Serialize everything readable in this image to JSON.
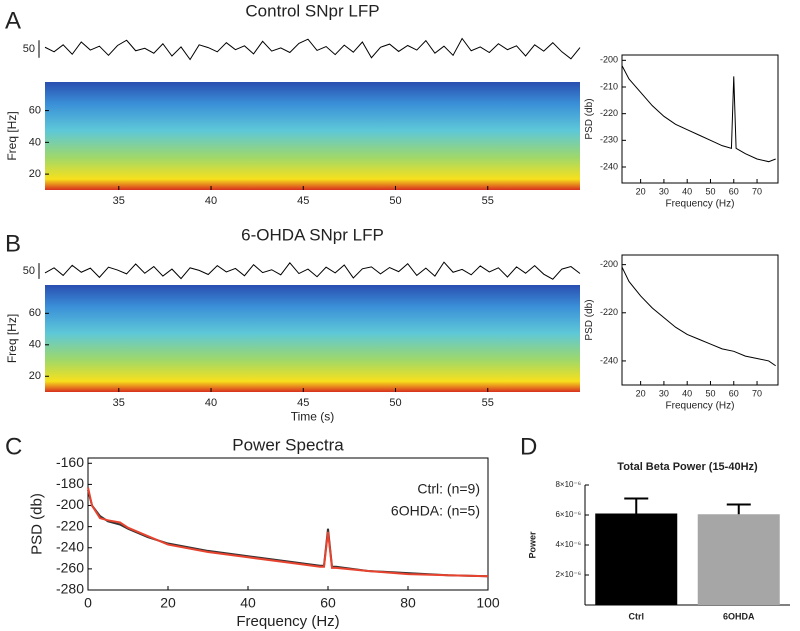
{
  "chart_data": [
    {
      "type": "trace",
      "panel": "A",
      "title": "Control SNpr LFP",
      "scale_bar": 50,
      "color": "#000000",
      "ylim": [
        -60,
        60
      ],
      "values": [
        5,
        -8,
        12,
        -15,
        20,
        -3,
        8,
        -18,
        10,
        25,
        -5,
        2,
        -12,
        15,
        -20,
        6,
        -30,
        12,
        4,
        -8,
        18,
        -2,
        9,
        -14,
        22,
        -6,
        3,
        -10,
        16,
        28,
        -4,
        7,
        -16,
        11,
        -9,
        20,
        -25,
        5,
        14,
        -7,
        10,
        -3,
        24,
        -12,
        8,
        -18,
        30,
        -5,
        6,
        -10,
        15,
        -2,
        9,
        -20,
        12,
        -6,
        18,
        -8,
        -28,
        4
      ]
    },
    {
      "type": "spectrogram",
      "ylabel": "Freq [Hz]",
      "xlim": [
        31,
        60
      ],
      "xticks": [
        35,
        40,
        45,
        50,
        55
      ],
      "ylim": [
        10,
        78
      ],
      "yticks": [
        20,
        40,
        60
      ]
    },
    {
      "type": "line",
      "xlabel": "Frequency (Hz)",
      "ylabel": "PSD (db)",
      "xlim": [
        12,
        79
      ],
      "xticks": [
        20,
        30,
        40,
        50,
        60,
        70
      ],
      "ylim": [
        -246,
        -198
      ],
      "yticks": [
        -200,
        -210,
        -220,
        -230,
        -240
      ],
      "color": "#000000",
      "x": [
        12,
        15,
        20,
        25,
        30,
        35,
        40,
        45,
        50,
        55,
        59,
        60,
        61,
        65,
        70,
        75,
        78
      ],
      "values": [
        -202,
        -207,
        -212,
        -217,
        -221,
        -224,
        -226,
        -228,
        -230,
        -232,
        -233,
        -206,
        -233,
        -235,
        -237,
        -238,
        -237
      ]
    },
    {
      "type": "trace",
      "panel": "B",
      "title": "6-OHDA SNpr LFP",
      "scale_bar": 50,
      "color": "#000000",
      "ylim": [
        -60,
        60
      ],
      "values": [
        -6,
        10,
        -14,
        18,
        -4,
        9,
        -20,
        12,
        3,
        -9,
        22,
        -7,
        14,
        -16,
        6,
        -24,
        10,
        2,
        -11,
        17,
        -3,
        8,
        -15,
        20,
        -5,
        4,
        -12,
        26,
        -8,
        6,
        -18,
        12,
        -6,
        19,
        -22,
        7,
        13,
        -9,
        11,
        -2,
        23,
        -14,
        9,
        -16,
        28,
        -4,
        5,
        -12,
        16,
        -3,
        10,
        -19,
        13,
        -7,
        17,
        -10,
        -26,
        6,
        14,
        -8
      ]
    },
    {
      "type": "spectrogram",
      "ylabel": "Freq [Hz]",
      "xlabel": "Time (s)",
      "xlim": [
        31,
        60
      ],
      "xticks": [
        35,
        40,
        45,
        50,
        55
      ],
      "ylim": [
        10,
        78
      ],
      "yticks": [
        20,
        40,
        60
      ]
    },
    {
      "type": "line",
      "xlabel": "Frequency (Hz)",
      "ylabel": "PSD (db)",
      "xlim": [
        12,
        79
      ],
      "xticks": [
        20,
        30,
        40,
        50,
        60,
        70
      ],
      "ylim": [
        -250,
        -196
      ],
      "yticks": [
        -200,
        -220,
        -240
      ],
      "color": "#000000",
      "x": [
        12,
        15,
        20,
        25,
        30,
        35,
        40,
        45,
        50,
        55,
        60,
        65,
        70,
        75,
        78
      ],
      "values": [
        -201,
        -207,
        -213,
        -218,
        -222,
        -226,
        -229,
        -231,
        -233,
        -235,
        -236,
        -238,
        -239,
        -240,
        -242
      ]
    },
    {
      "type": "line",
      "panel": "C",
      "title": "Power Spectra",
      "xlabel": "Frequency (Hz)",
      "ylabel": "PSD (db)",
      "xlim": [
        0,
        100
      ],
      "xticks": [
        0,
        20,
        40,
        60,
        80,
        100
      ],
      "ylim": [
        -280,
        -155
      ],
      "yticks": [
        -160,
        -180,
        -200,
        -220,
        -240,
        -260,
        -280
      ],
      "legend": "upper right",
      "x": [
        0,
        1,
        3,
        5,
        8,
        10,
        15,
        20,
        30,
        40,
        50,
        58,
        59,
        60,
        61,
        62,
        70,
        80,
        90,
        100
      ],
      "series": [
        {
          "name": "Ctrl: (n=9)",
          "color": "#333333",
          "values": [
            -185,
            -200,
            -210,
            -215,
            -218,
            -222,
            -230,
            -236,
            -243,
            -248,
            -253,
            -257,
            -257,
            -222,
            -258,
            -258,
            -262,
            -264,
            -266,
            -267
          ]
        },
        {
          "name": "6OHDA: (n=5)",
          "color": "#e8432e",
          "values": [
            -183,
            -200,
            -212,
            -214,
            -216,
            -221,
            -229,
            -237,
            -244,
            -249,
            -254,
            -258,
            -258,
            -225,
            -259,
            -259,
            -262,
            -265,
            -266,
            -267
          ]
        }
      ]
    },
    {
      "type": "bar",
      "panel": "D",
      "title": "Total Beta Power (15-40Hz)",
      "ylabel": "Power",
      "categories": [
        "Ctrl",
        "6OHDA"
      ],
      "colors": [
        "#000000",
        "#a6a6a6"
      ],
      "values": [
        6.1e-06,
        6.05e-06
      ],
      "errors": [
        1e-06,
        6.5e-07
      ],
      "ylim": [
        0,
        8e-06
      ],
      "yticks": [
        {
          "value": 2e-06,
          "label": "2×10⁻⁶"
        },
        {
          "value": 4e-06,
          "label": "4×10⁻⁶"
        },
        {
          "value": 6e-06,
          "label": "6×10⁻⁶"
        },
        {
          "value": 8e-06,
          "label": "8×10⁻⁶"
        }
      ]
    }
  ]
}
